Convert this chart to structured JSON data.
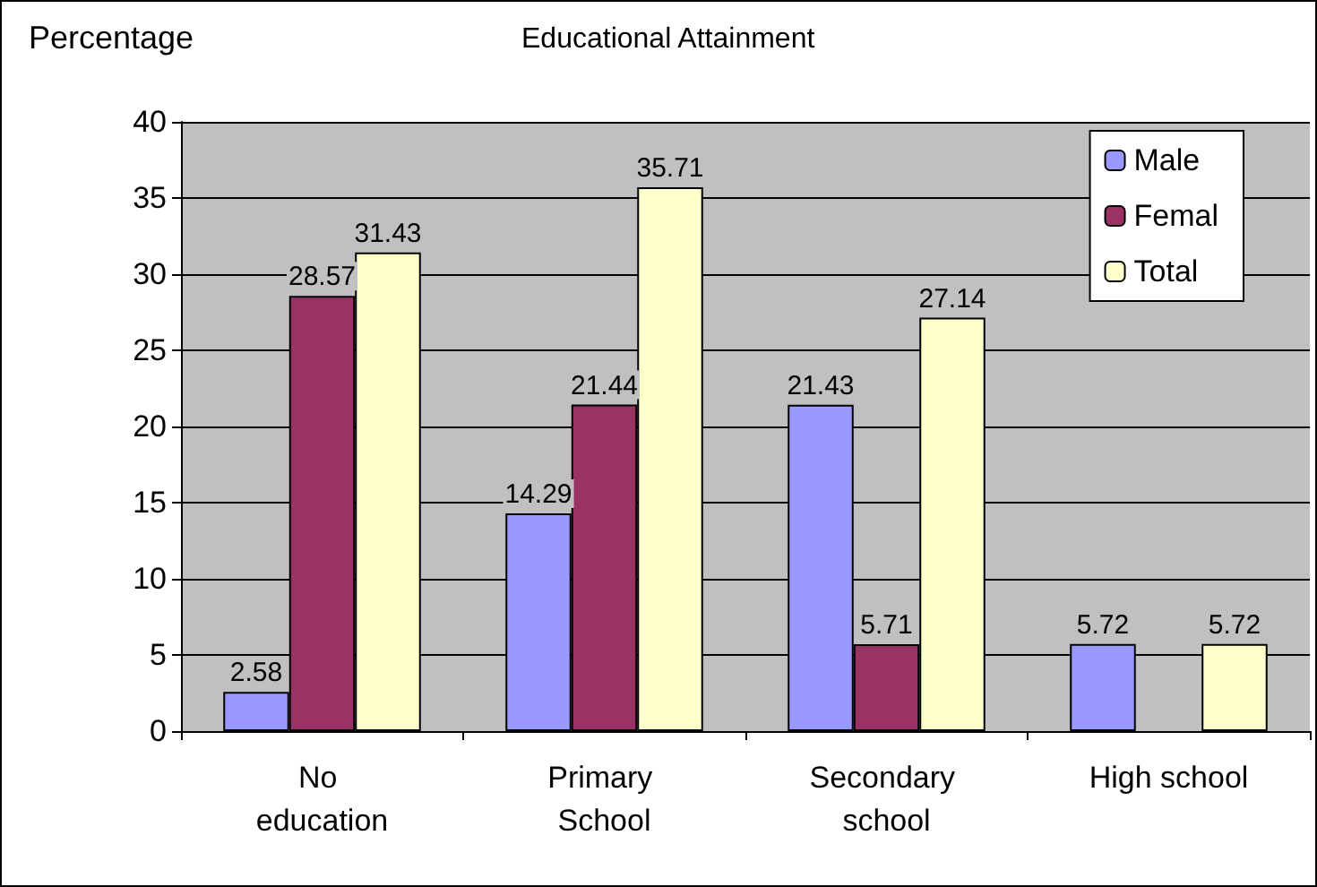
{
  "chart_data": {
    "type": "bar",
    "title": "Educational Attainment",
    "ylabel": "Percentage",
    "categories": [
      "No education",
      "Primary School",
      "Secondary school",
      "High school"
    ],
    "series": [
      {
        "name": "Male",
        "color": "#9999ff",
        "values": [
          2.58,
          14.29,
          21.43,
          5.72
        ]
      },
      {
        "name": "Femal",
        "color": "#993366",
        "values": [
          28.57,
          21.44,
          5.71,
          null
        ]
      },
      {
        "name": "Total",
        "color": "#ffffcc",
        "values": [
          31.43,
          35.71,
          27.14,
          5.72
        ]
      }
    ],
    "ylim": [
      0,
      40
    ],
    "yticks": [
      0,
      5,
      10,
      15,
      20,
      25,
      30,
      35,
      40
    ],
    "grid": "y",
    "legend": "top right",
    "data_labels": true
  }
}
